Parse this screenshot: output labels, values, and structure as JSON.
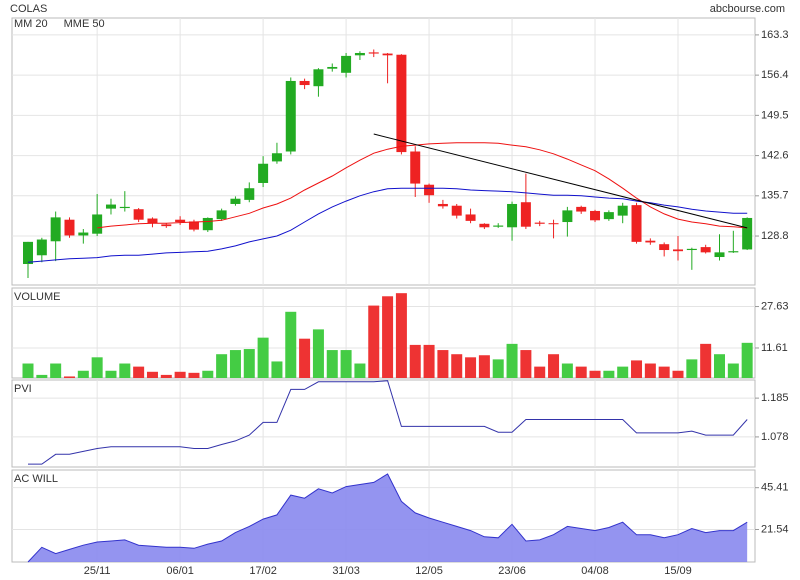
{
  "chart_data": [
    {
      "type": "candlestick",
      "title": "COLAS",
      "source": "abcbourse.com",
      "categories": [
        null,
        null,
        null,
        null,
        null,
        "25/11",
        null,
        null,
        null,
        null,
        null,
        "06/01",
        null,
        null,
        null,
        null,
        null,
        "17/02",
        null,
        null,
        null,
        null,
        null,
        "31/03",
        null,
        null,
        null,
        null,
        null,
        "12/05",
        null,
        null,
        null,
        null,
        null,
        "23/06",
        null,
        null,
        null,
        null,
        null,
        "04/08",
        null,
        null,
        null,
        null,
        null,
        "15/09",
        null,
        null,
        null,
        null,
        null
      ],
      "open": [
        124.0,
        125.5,
        127.9,
        131.6,
        128.9,
        129.2,
        133.5,
        133.6,
        133.4,
        131.8,
        130.8,
        131.6,
        131.3,
        129.8,
        131.7,
        134.3,
        135.0,
        137.9,
        141.6,
        143.3,
        155.4,
        154.5,
        157.5,
        156.8,
        159.8,
        160.3,
        160.1,
        159.9,
        143.3,
        137.6,
        134.3,
        134.0,
        132.5,
        130.9,
        130.4,
        130.3,
        134.6,
        131.1,
        131.0,
        131.2,
        133.8,
        133.1,
        131.7,
        132.3,
        134.1,
        128.0,
        127.4,
        126.5,
        126.4,
        126.9,
        125.2,
        126.0,
        126.5
      ],
      "high": [
        127.8,
        128.5,
        133.0,
        132.0,
        130.0,
        136.0,
        135.2,
        136.5,
        133.6,
        132.0,
        131.0,
        132.2,
        131.6,
        132.0,
        133.5,
        135.6,
        138.0,
        142.5,
        144.8,
        156.0,
        155.8,
        157.6,
        158.4,
        160.2,
        160.5,
        160.8,
        160.2,
        160.0,
        144.2,
        137.8,
        135.0,
        134.3,
        133.5,
        131.0,
        131.0,
        134.7,
        139.5,
        131.4,
        131.6,
        133.8,
        134.0,
        133.3,
        133.2,
        134.5,
        134.5,
        128.4,
        127.7,
        128.8,
        126.8,
        127.3,
        129.1,
        129.7,
        132.0
      ],
      "low": [
        121.6,
        124.3,
        124.5,
        128.5,
        127.5,
        128.8,
        132.5,
        133.0,
        131.2,
        130.3,
        130.2,
        130.7,
        129.6,
        129.5,
        131.4,
        134.0,
        134.6,
        137.2,
        141.2,
        142.8,
        154.0,
        152.7,
        157.0,
        156.0,
        159.0,
        159.5,
        155.0,
        142.8,
        135.5,
        134.5,
        133.5,
        131.8,
        131.0,
        130.0,
        130.2,
        128.0,
        130.0,
        130.5,
        128.4,
        128.7,
        132.6,
        131.2,
        131.4,
        131.0,
        127.5,
        127.3,
        125.3,
        124.6,
        123.0,
        125.8,
        124.6,
        125.9,
        126.4
      ],
      "close": [
        127.8,
        128.2,
        132.0,
        128.9,
        129.4,
        132.5,
        134.2,
        133.8,
        131.6,
        131.0,
        130.5,
        131.2,
        129.9,
        131.9,
        133.2,
        135.2,
        137.0,
        141.2,
        143.0,
        155.4,
        154.7,
        157.4,
        157.8,
        159.7,
        160.2,
        160.1,
        159.8,
        143.2,
        137.8,
        135.8,
        133.9,
        132.3,
        131.4,
        130.3,
        130.6,
        134.3,
        130.4,
        130.9,
        130.9,
        133.2,
        133.0,
        131.5,
        132.9,
        134.0,
        127.8,
        127.7,
        126.4,
        126.2,
        126.6,
        126.0,
        126.0,
        126.2,
        131.9
      ],
      "up_color": "#22aa22",
      "down_color": "#ee2222",
      "lines": [
        {
          "name": "MM 20",
          "color": "#ee1111",
          "values": [
            null,
            null,
            null,
            null,
            null,
            130.2,
            130.5,
            130.7,
            130.9,
            131.0,
            131.0,
            131.1,
            131.2,
            131.3,
            131.5,
            132.1,
            132.7,
            133.6,
            134.3,
            135.3,
            136.7,
            137.9,
            139.1,
            140.5,
            141.8,
            143.0,
            143.7,
            144.2,
            144.4,
            144.6,
            144.7,
            144.8,
            144.8,
            144.8,
            144.7,
            144.4,
            144.1,
            143.6,
            142.9,
            142.0,
            141.0,
            140.0,
            138.6,
            137.0,
            135.3,
            133.8,
            132.6,
            131.7,
            131.2,
            130.9,
            130.5,
            130.4,
            130.2
          ]
        },
        {
          "name": "MME 50",
          "color": "#1111cc",
          "values": [
            124.3,
            124.5,
            124.7,
            124.9,
            125.0,
            125.1,
            125.4,
            125.5,
            125.5,
            125.7,
            125.9,
            126.0,
            126.1,
            126.2,
            126.6,
            127.1,
            127.8,
            128.3,
            128.8,
            129.8,
            131.2,
            132.6,
            133.8,
            134.8,
            135.7,
            136.4,
            136.9,
            137.0,
            137.0,
            137.0,
            137.0,
            136.9,
            136.7,
            136.6,
            136.5,
            136.4,
            136.2,
            136.0,
            135.8,
            135.8,
            135.7,
            135.5,
            135.3,
            135.2,
            134.8,
            134.5,
            134.1,
            133.8,
            133.4,
            133.1,
            132.9,
            132.7,
            132.7
          ]
        }
      ],
      "trendline": {
        "x": [
          25,
          52
        ],
        "values": [
          146.3,
          130.2
        ],
        "color": "#000000"
      },
      "ylim": [
        120.4,
        166.2
      ],
      "yticks": [
        128.8,
        135.7,
        142.6,
        149.5,
        156.4,
        163.3
      ],
      "grid": true
    },
    {
      "type": "bar",
      "title": "VOLUME",
      "title_color": "#33bb33",
      "up_color": "#44cc44",
      "down_color": "#ee3333",
      "values": [
        5.6,
        1.2,
        5.6,
        0.6,
        2.8,
        8.0,
        2.8,
        5.6,
        4.4,
        2.4,
        1.2,
        2.4,
        2.0,
        2.8,
        9.2,
        10.8,
        11.2,
        15.6,
        6.4,
        25.6,
        15.2,
        18.8,
        10.8,
        10.8,
        5.6,
        28.0,
        31.6,
        32.8,
        12.8,
        12.8,
        10.8,
        9.2,
        8.0,
        8.8,
        7.2,
        13.2,
        10.8,
        4.4,
        9.2,
        5.6,
        4.4,
        2.8,
        2.8,
        4.4,
        6.8,
        5.6,
        4.4,
        2.8,
        7.2,
        13.2,
        9.2,
        5.6,
        13.6
      ],
      "ylim": [
        0,
        34.8
      ],
      "yticks": [
        11.61,
        27.63
      ],
      "grid": true
    },
    {
      "type": "line",
      "title": "PVI",
      "title_color": "#333399",
      "color": "#3333aa",
      "values": [
        1.003,
        1.003,
        1.03,
        1.03,
        1.038,
        1.046,
        1.051,
        1.051,
        1.051,
        1.051,
        1.051,
        1.051,
        1.046,
        1.046,
        1.057,
        1.067,
        1.083,
        1.118,
        1.118,
        1.209,
        1.209,
        1.23,
        1.23,
        1.23,
        1.23,
        1.23,
        1.233,
        1.107,
        1.107,
        1.107,
        1.107,
        1.107,
        1.107,
        1.107,
        1.091,
        1.091,
        1.126,
        1.126,
        1.126,
        1.126,
        1.126,
        1.126,
        1.126,
        1.126,
        1.089,
        1.089,
        1.089,
        1.089,
        1.094,
        1.083,
        1.083,
        1.083,
        1.126
      ],
      "ylim": [
        0.995,
        1.235
      ],
      "yticks": [
        1.078,
        1.185
      ],
      "grid": true
    },
    {
      "type": "area",
      "title": "AC WILL",
      "title_color": "#333399",
      "color": "#3333cc",
      "fill": "#8888ee",
      "values": [
        3.0,
        11.4,
        7.8,
        10.2,
        12.6,
        14.4,
        15.0,
        15.6,
        12.6,
        12.0,
        11.4,
        11.4,
        10.8,
        13.2,
        15.0,
        19.8,
        23.3,
        27.5,
        29.9,
        41.2,
        39.4,
        44.8,
        42.4,
        46.0,
        47.2,
        48.4,
        53.2,
        37.6,
        31.0,
        28.1,
        25.7,
        23.3,
        20.9,
        17.4,
        16.8,
        24.5,
        15.0,
        15.6,
        18.6,
        23.3,
        22.1,
        20.9,
        22.7,
        25.7,
        18.6,
        18.6,
        16.8,
        18.6,
        22.1,
        19.8,
        20.9,
        20.9,
        25.7
      ],
      "ylim": [
        3.0,
        55.5
      ],
      "yticks": [
        21.54,
        45.41
      ],
      "grid": true
    }
  ]
}
